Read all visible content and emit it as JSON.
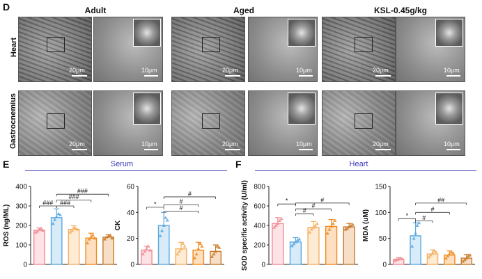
{
  "panel_d": {
    "letter": "D",
    "groups": [
      "Adult",
      "Aged",
      "KSL-0.45g/kg"
    ],
    "rows": [
      "Heart",
      "Gastrocnemius"
    ],
    "scale_main": "20μm",
    "scale_zoom": "10μm"
  },
  "panel_e": {
    "letter": "E",
    "section_title": "Serum"
  },
  "panel_f": {
    "letter": "F",
    "section_title": "Heart"
  },
  "colors": {
    "c1": "#f08c96",
    "c2": "#5ca8e0",
    "c3": "#f5b063",
    "c4": "#f08a1c",
    "c5": "#c97a2a",
    "section": "#3a3ab8"
  },
  "chart_data": [
    {
      "id": "ros",
      "type": "bar",
      "ylabel": "ROS (ng/ML)",
      "ylim": [
        0,
        400
      ],
      "yticks": [
        0,
        100,
        200,
        300,
        400
      ],
      "values": [
        175,
        240,
        180,
        135,
        140
      ],
      "errors": [
        12,
        45,
        18,
        25,
        12
      ],
      "points": [
        [
          165,
          170,
          180,
          185,
          175
        ],
        [
          210,
          230,
          245,
          260,
          255
        ],
        [
          165,
          175,
          190,
          185,
          180
        ],
        [
          110,
          130,
          140,
          150,
          135
        ],
        [
          130,
          140,
          145,
          150,
          135
        ]
      ],
      "annotations": [
        {
          "from": 0,
          "to": 1,
          "label": "###",
          "y": 300
        },
        {
          "from": 1,
          "to": 2,
          "label": "###",
          "y": 300
        },
        {
          "from": 1,
          "to": 3,
          "label": "###",
          "y": 330
        },
        {
          "from": 1,
          "to": 4,
          "label": "###",
          "y": 360
        }
      ]
    },
    {
      "id": "ck",
      "type": "bar",
      "ylabel": "CK",
      "ylim": [
        0,
        60
      ],
      "yticks": [
        0,
        20,
        40,
        60
      ],
      "values": [
        11,
        30,
        12,
        11,
        10
      ],
      "errors": [
        3,
        10,
        5,
        6,
        5
      ],
      "points": [
        [
          8,
          10,
          12,
          14,
          11
        ],
        [
          22,
          26,
          30,
          36,
          34
        ],
        [
          8,
          10,
          12,
          16,
          14
        ],
        [
          5,
          8,
          12,
          16,
          14
        ],
        [
          6,
          8,
          10,
          14,
          13
        ]
      ],
      "annotations": [
        {
          "from": 0,
          "to": 1,
          "label": "*",
          "y": 44
        },
        {
          "from": 1,
          "to": 3,
          "label": "#",
          "y": 41
        },
        {
          "from": 1,
          "to": 3,
          "label": "#",
          "y": 46
        },
        {
          "from": 1,
          "to": 4,
          "label": "#",
          "y": 52
        }
      ]
    },
    {
      "id": "sod",
      "type": "bar",
      "ylabel": "SOD specific activity (U/ml)",
      "ylim": [
        0,
        800
      ],
      "yticks": [
        0,
        200,
        400,
        600,
        800
      ],
      "values": [
        420,
        230,
        380,
        390,
        385
      ],
      "errors": [
        60,
        45,
        60,
        70,
        35
      ],
      "points": [
        [
          380,
          400,
          420,
          450,
          470
        ],
        [
          190,
          210,
          230,
          250,
          260
        ],
        [
          330,
          360,
          380,
          400,
          420
        ],
        [
          320,
          360,
          390,
          420,
          450
        ],
        [
          360,
          370,
          385,
          400,
          410
        ]
      ],
      "annotations": [
        {
          "from": 0,
          "to": 1,
          "label": "*",
          "y": 620
        },
        {
          "from": 1,
          "to": 2,
          "label": "#",
          "y": 520
        },
        {
          "from": 1,
          "to": 3,
          "label": "#",
          "y": 570
        },
        {
          "from": 1,
          "to": 4,
          "label": "#",
          "y": 630
        }
      ]
    },
    {
      "id": "mda",
      "type": "bar",
      "ylabel": "MDA (uM)",
      "ylim": [
        0,
        150
      ],
      "yticks": [
        0,
        50,
        100,
        150
      ],
      "values": [
        10,
        55,
        20,
        18,
        12
      ],
      "errors": [
        3,
        25,
        8,
        8,
        7
      ],
      "points": [
        [
          7,
          9,
          10,
          12,
          11
        ],
        [
          35,
          50,
          60,
          75,
          80
        ],
        [
          14,
          18,
          22,
          26,
          24
        ],
        [
          12,
          16,
          20,
          24,
          22
        ],
        [
          6,
          9,
          12,
          16,
          18
        ]
      ],
      "annotations": [
        {
          "from": 0,
          "to": 1,
          "label": "*",
          "y": 88
        },
        {
          "from": 1,
          "to": 2,
          "label": "#",
          "y": 84
        },
        {
          "from": 1,
          "to": 3,
          "label": "#",
          "y": 100
        },
        {
          "from": 1,
          "to": 4,
          "label": "##",
          "y": 118
        }
      ]
    }
  ]
}
